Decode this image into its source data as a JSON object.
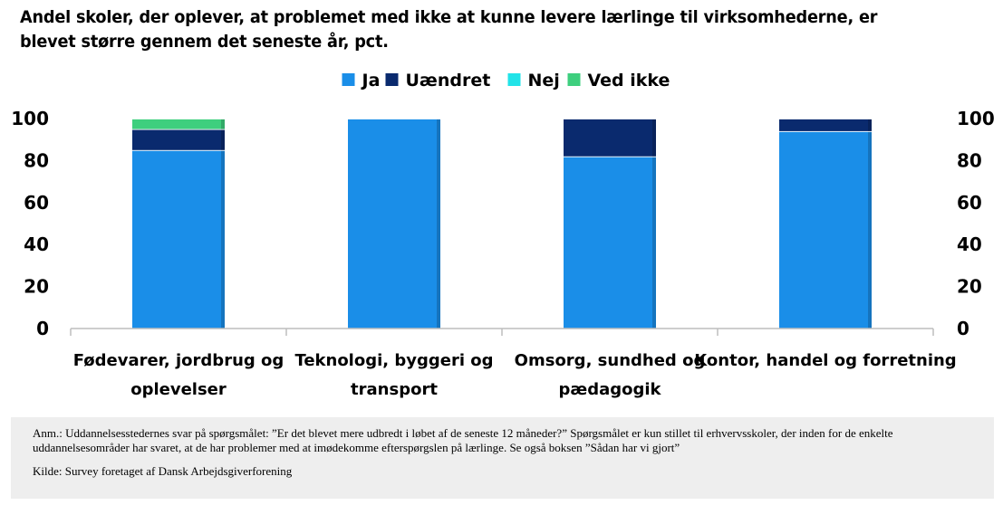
{
  "chart_data": {
    "type": "bar",
    "stacked": true,
    "title": "Andel skoler, der oplever, at problemet med ikke at kunne levere lærlinge til virksomhederne, er blevet større gennem det seneste år, pct.",
    "categories": [
      [
        "Fødevarer, jordbrug og",
        "oplevelser"
      ],
      [
        "Teknologi, byggeri og",
        "transport"
      ],
      [
        "Omsorg, sundhed og",
        "pædagogik"
      ],
      [
        "Kontor, handel og forretning"
      ]
    ],
    "series": [
      {
        "name": "Ja",
        "color": "#1a8ee8",
        "values": [
          85,
          100,
          82,
          94
        ]
      },
      {
        "name": "Uændret",
        "color": "#0a2a6e",
        "values": [
          10,
          0,
          18,
          6
        ]
      },
      {
        "name": "Nej",
        "color": "#22e3e8",
        "values": [
          0,
          0,
          0,
          0
        ]
      },
      {
        "name": "Ved ikke",
        "color": "#3ecf7e",
        "values": [
          5,
          0,
          0,
          0
        ]
      }
    ],
    "ylim": [
      0,
      100
    ],
    "yticks": [
      "0",
      "20",
      "40",
      "60",
      "80",
      "100"
    ],
    "legend_position": "top-center",
    "grid": false
  },
  "note": {
    "anm": "Anm.: Uddannelsesstedernes svar på spørgsmålet: ”Er det blevet mere udbredt i løbet af de seneste 12 måneder?” Spørgsmålet er kun stillet til erhvervsskoler, der inden for de enkelte uddannelsesområder har svaret, at de har problemer med at imødekomme efterspørgslen på lærlinge. Se også boksen ”Sådan har vi gjort”",
    "kilde": "Kilde: Survey foretaget af Dansk Arbejdsgiverforening"
  }
}
